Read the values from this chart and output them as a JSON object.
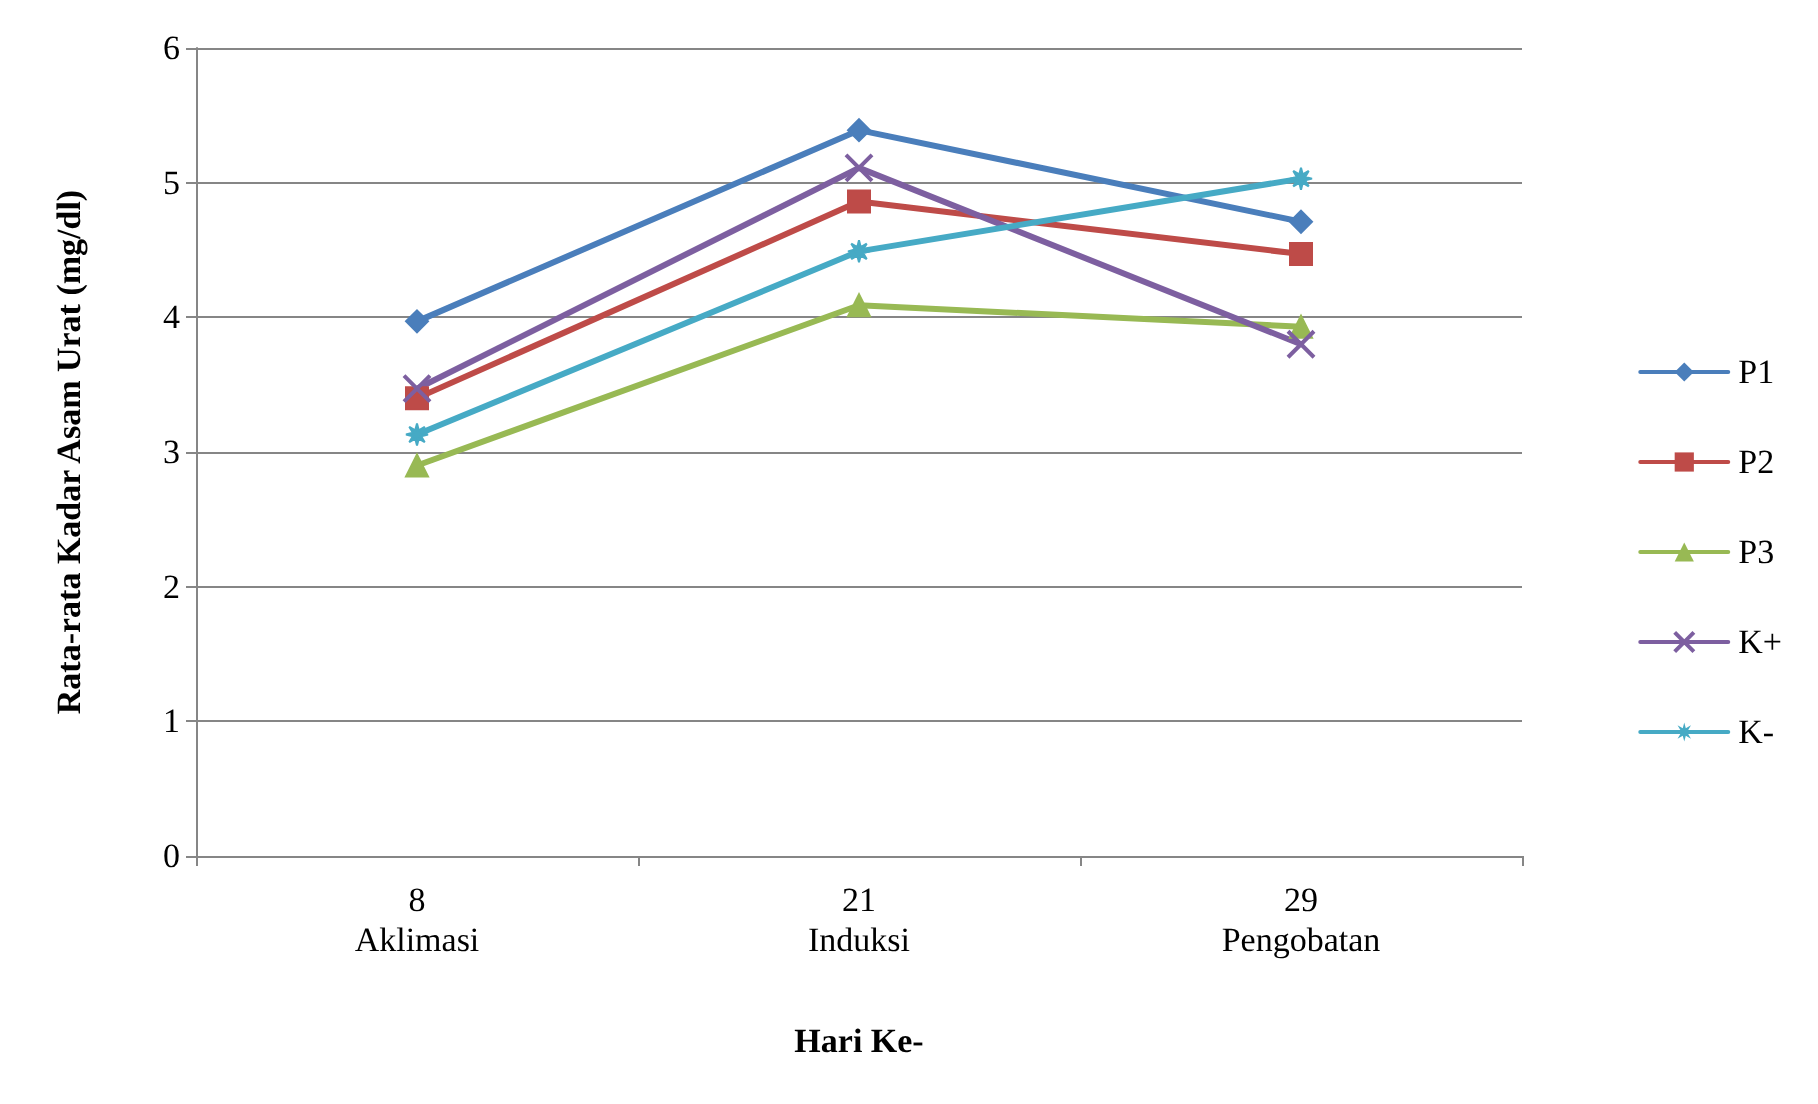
{
  "chart_data": {
    "type": "line",
    "xlabel": "Hari Ke-",
    "ylabel": "Rata-rata Kadar Asam Urat (mg/dl)",
    "categories": [
      "8\nAklimasi",
      "21\nInduksi",
      "29\nPengobatan"
    ],
    "ylim": [
      0,
      6
    ],
    "yticks": [
      0,
      1,
      2,
      3,
      4,
      5,
      6
    ],
    "grid": "y",
    "legend": "right",
    "series": [
      {
        "name": "P1",
        "color": "#4a7ebb",
        "marker": "diamond",
        "values": [
          3.97,
          5.39,
          4.71
        ]
      },
      {
        "name": "P2",
        "color": "#be4b48",
        "marker": "square",
        "values": [
          3.4,
          4.86,
          4.47
        ]
      },
      {
        "name": "P3",
        "color": "#98b954",
        "marker": "triangle",
        "values": [
          2.9,
          4.09,
          3.93
        ]
      },
      {
        "name": "K+",
        "color": "#7d5fa0",
        "marker": "cross",
        "values": [
          3.47,
          5.11,
          3.8
        ]
      },
      {
        "name": "K-",
        "color": "#46aac5",
        "marker": "star",
        "values": [
          3.13,
          4.49,
          5.03
        ]
      }
    ]
  }
}
